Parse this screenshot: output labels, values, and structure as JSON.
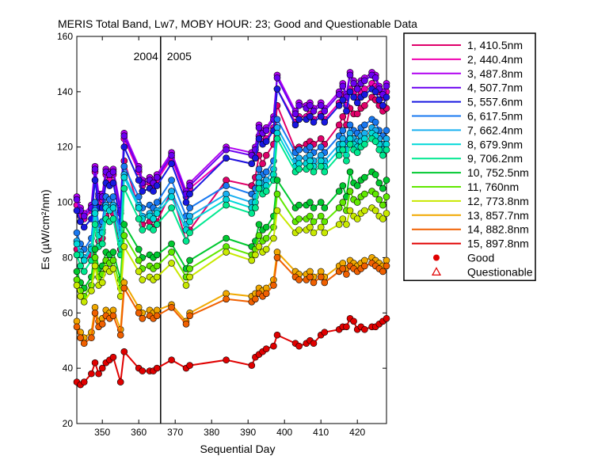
{
  "chart_data": {
    "type": "line",
    "title": "MERIS Total Band,  Lw7, MOBY HOUR: 23;  Good and Questionable Data",
    "xlabel": "Sequential Day",
    "ylabel": "Es (µW/cm²/nm)",
    "xlim": [
      343,
      428
    ],
    "ylim": [
      20,
      160
    ],
    "xticks": [
      350,
      360,
      370,
      380,
      390,
      400,
      410,
      420
    ],
    "yticks": [
      20,
      40,
      60,
      80,
      100,
      120,
      140,
      160
    ],
    "year_divider": {
      "x": 366,
      "left_label": "2004",
      "right_label": "2005"
    },
    "legend_position": "right, outside plot",
    "markers": {
      "good": "Good",
      "questionable": "Questionable"
    },
    "x": [
      343,
      344,
      345,
      347,
      348,
      349,
      350,
      351,
      352,
      353,
      355,
      356,
      360,
      361,
      363,
      364,
      365,
      369,
      373,
      374,
      384,
      391,
      392,
      393,
      394,
      395,
      397,
      398,
      403,
      404,
      406,
      407,
      408,
      410,
      411,
      415,
      416,
      417,
      418,
      419,
      420,
      421,
      422,
      424,
      425,
      426,
      427,
      428
    ],
    "series": [
      {
        "name": "1, 410.5nm",
        "color": "#e0006a",
        "values": [
          83,
          82,
          79,
          81,
          94,
          86,
          87,
          95,
          93,
          96,
          83,
          115,
          98,
          92,
          93,
          91,
          93,
          104,
          86,
          90,
          108,
          106,
          109,
          117,
          114,
          117,
          121,
          135,
          119,
          120,
          121,
          122,
          121,
          123,
          121,
          128,
          131,
          128,
          134,
          132,
          132,
          134,
          135,
          138,
          137,
          135,
          133,
          134
        ]
      },
      {
        "name": "2, 440.4nm",
        "color": "#f000b0",
        "values": [
          99,
          95,
          94,
          97,
          111,
          100,
          101,
          110,
          108,
          110,
          96,
          123,
          111,
          106,
          107,
          106,
          108,
          116,
          102,
          105,
          116,
          114,
          116,
          124,
          122,
          123,
          127,
          141,
          129,
          131,
          131,
          132,
          130,
          132,
          130,
          136,
          139,
          135,
          141,
          140,
          138,
          140,
          141,
          143,
          142,
          140,
          138,
          140
        ]
      },
      {
        "name": "3, 487.8nm",
        "color": "#b000f0",
        "values": [
          102,
          98,
          96,
          99,
          113,
          103,
          103,
          112,
          111,
          112,
          98,
          125,
          113,
          108,
          109,
          108,
          110,
          118,
          104,
          107,
          120,
          118,
          120,
          128,
          126,
          127,
          131,
          146,
          133,
          136,
          135,
          136,
          134,
          136,
          134,
          140,
          143,
          139,
          147,
          144,
          142,
          144,
          145,
          147,
          146,
          142,
          140,
          143
        ]
      },
      {
        "name": "4, 507.7nm",
        "color": "#6a00f0",
        "values": [
          101,
          97,
          95,
          98,
          112,
          102,
          102,
          111,
          110,
          111,
          97,
          124,
          112,
          107,
          108,
          107,
          109,
          117,
          103,
          106,
          119,
          117,
          119,
          127,
          125,
          126,
          130,
          145,
          132,
          135,
          134,
          135,
          133,
          135,
          133,
          139,
          142,
          138,
          146,
          143,
          141,
          143,
          144,
          146,
          145,
          141,
          139,
          142
        ]
      },
      {
        "name": "5, 557.6nm",
        "color": "#1818e0",
        "values": [
          97,
          93,
          91,
          94,
          108,
          98,
          98,
          107,
          106,
          107,
          93,
          120,
          108,
          104,
          105,
          104,
          106,
          114,
          100,
          103,
          116,
          114,
          116,
          123,
          121,
          122,
          126,
          141,
          128,
          130,
          130,
          131,
          129,
          131,
          129,
          135,
          137,
          133,
          140,
          138,
          136,
          138,
          139,
          141,
          140,
          137,
          135,
          138
        ]
      },
      {
        "name": "6, 617.5nm",
        "color": "#1878f0",
        "values": [
          89,
          85,
          83,
          87,
          100,
          92,
          93,
          102,
          101,
          102,
          89,
          113,
          102,
          98,
          99,
          98,
          100,
          108,
          95,
          98,
          106,
          103,
          105,
          112,
          110,
          111,
          115,
          130,
          118,
          119,
          119,
          120,
          118,
          120,
          118,
          124,
          126,
          122,
          128,
          126,
          125,
          127,
          128,
          130,
          129,
          126,
          124,
          126
        ]
      },
      {
        "name": "7, 662.4nm",
        "color": "#18b0f0",
        "values": [
          86,
          82,
          80,
          84,
          97,
          89,
          90,
          99,
          98,
          99,
          86,
          110,
          99,
          95,
          96,
          95,
          97,
          104,
          92,
          95,
          103,
          100,
          102,
          109,
          107,
          108,
          112,
          127,
          115,
          116,
          116,
          117,
          115,
          117,
          115,
          121,
          123,
          119,
          125,
          123,
          122,
          124,
          125,
          127,
          126,
          123,
          121,
          123
        ]
      },
      {
        "name": "8, 679.9nm",
        "color": "#00d8d8",
        "values": [
          85,
          81,
          79,
          83,
          96,
          88,
          89,
          98,
          97,
          98,
          85,
          109,
          98,
          94,
          95,
          94,
          96,
          102,
          90,
          93,
          101,
          98,
          100,
          107,
          105,
          106,
          110,
          125,
          113,
          114,
          114,
          115,
          113,
          115,
          113,
          119,
          121,
          117,
          123,
          121,
          120,
          122,
          123,
          125,
          124,
          121,
          119,
          121
        ]
      },
      {
        "name": "9, 706.2nm",
        "color": "#00e890",
        "values": [
          81,
          77,
          75,
          79,
          92,
          84,
          85,
          94,
          93,
          94,
          81,
          105,
          94,
          90,
          91,
          90,
          92,
          98,
          86,
          89,
          99,
          96,
          98,
          105,
          103,
          104,
          108,
          123,
          111,
          112,
          112,
          113,
          111,
          113,
          111,
          117,
          119,
          115,
          121,
          119,
          118,
          120,
          121,
          123,
          122,
          119,
          117,
          119
        ]
      },
      {
        "name": "10, 752.5nm",
        "color": "#00c830",
        "values": [
          75,
          71,
          69,
          73,
          83,
          76,
          77,
          82,
          81,
          82,
          72,
          92,
          83,
          80,
          81,
          80,
          81,
          85,
          76,
          79,
          87,
          84,
          86,
          92,
          90,
          91,
          95,
          108,
          98,
          99,
          99,
          100,
          98,
          100,
          98,
          104,
          106,
          102,
          111,
          107,
          106,
          108,
          109,
          111,
          110,
          107,
          105,
          108
        ]
      },
      {
        "name": "11,   760nm",
        "color": "#60e800",
        "values": [
          72,
          68,
          66,
          70,
          80,
          73,
          74,
          79,
          78,
          79,
          69,
          88,
          79,
          76,
          77,
          76,
          77,
          82,
          73,
          76,
          84,
          81,
          83,
          88,
          86,
          87,
          91,
          103,
          93,
          94,
          94,
          95,
          93,
          95,
          93,
          98,
          100,
          97,
          104,
          101,
          100,
          102,
          103,
          104,
          103,
          101,
          99,
          102
        ]
      },
      {
        "name": "12, 773.8nm",
        "color": "#c8e800",
        "values": [
          70,
          66,
          64,
          68,
          77,
          70,
          71,
          76,
          75,
          76,
          66,
          84,
          75,
          72,
          73,
          72,
          73,
          78,
          70,
          73,
          82,
          79,
          81,
          84,
          82,
          83,
          87,
          97,
          89,
          90,
          90,
          91,
          89,
          91,
          89,
          92,
          94,
          92,
          97,
          95,
          94,
          96,
          97,
          98,
          97,
          95,
          94,
          96
        ]
      },
      {
        "name": "13, 857.7nm",
        "color": "#f0a800",
        "values": [
          57,
          53,
          51,
          53,
          62,
          57,
          58,
          61,
          60,
          61,
          54,
          71,
          62,
          60,
          61,
          60,
          61,
          63,
          57,
          60,
          67,
          66,
          67,
          69,
          68,
          69,
          72,
          82,
          75,
          74,
          74,
          75,
          73,
          75,
          73,
          77,
          78,
          76,
          79,
          78,
          77,
          78,
          79,
          80,
          79,
          78,
          77,
          79
        ]
      },
      {
        "name": "14, 882.8nm",
        "color": "#f06000",
        "values": [
          55,
          51,
          49,
          51,
          60,
          55,
          56,
          59,
          58,
          59,
          52,
          69,
          60,
          58,
          59,
          58,
          59,
          62,
          56,
          59,
          65,
          64,
          65,
          67,
          66,
          67,
          70,
          80,
          73,
          72,
          72,
          73,
          71,
          73,
          71,
          75,
          76,
          74,
          77,
          76,
          75,
          76,
          77,
          78,
          77,
          76,
          75,
          77
        ]
      },
      {
        "name": "15, 897.8nm",
        "color": "#e00000",
        "values": [
          35,
          34,
          35,
          38,
          42,
          38,
          40,
          42,
          43,
          44,
          35,
          46,
          40,
          39,
          39,
          39,
          40,
          43,
          40,
          41,
          43,
          41,
          44,
          45,
          46,
          47,
          48,
          52,
          49,
          48,
          49,
          50,
          49,
          52,
          53,
          54,
          55,
          55,
          58,
          57,
          54,
          55,
          54,
          55,
          55,
          56,
          57,
          58
        ]
      }
    ]
  }
}
